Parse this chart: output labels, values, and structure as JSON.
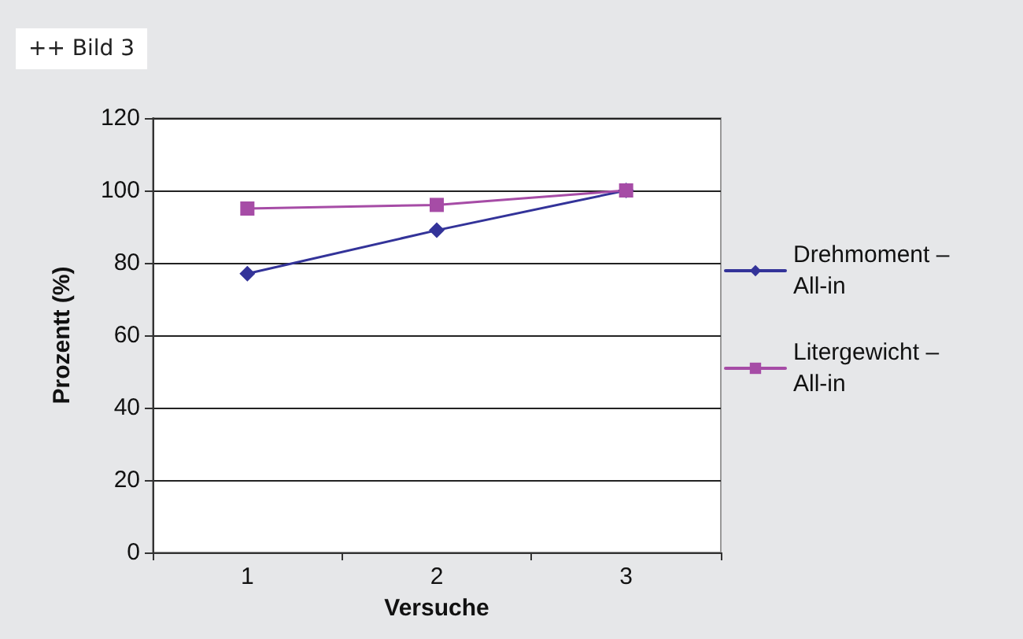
{
  "chart_data": {
    "type": "line",
    "title": "++ Bild 3",
    "xlabel": "Versuche",
    "ylabel": "Prozentt (%)",
    "categories": [
      "1",
      "2",
      "3"
    ],
    "series": [
      {
        "name": "Drehmoment – All-in",
        "color": "#333399",
        "marker": "diamond",
        "values": [
          77,
          89,
          100
        ]
      },
      {
        "name": "Litergewicht – All-in",
        "color": "#a64ca6",
        "marker": "square",
        "values": [
          95,
          96,
          100
        ]
      }
    ],
    "ylim": [
      0,
      120
    ],
    "yticks": [
      0,
      20,
      40,
      60,
      80,
      100,
      120
    ],
    "grid": "y",
    "legend": "right",
    "line_style": "solid"
  }
}
